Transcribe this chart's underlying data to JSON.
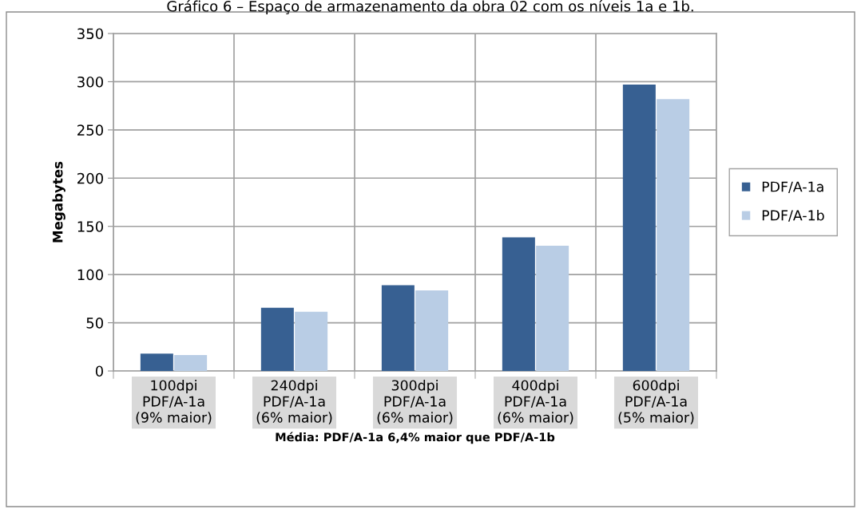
{
  "chart_data": {
    "type": "bar",
    "title": "Gráfico 6 – Espaço de armazenamento da obra 02 com os níveis 1a e 1b.",
    "xlabel": "Média: PDF/A-1a 6,4% maior que PDF/A-1b",
    "ylabel": "Megabytes",
    "categories": [
      "100dpi\nPDF/A-1a\n(9% maior)",
      "240dpi\nPDF/A-1a\n(6% maior)",
      "300dpi\nPDF/A-1a\n(6% maior)",
      "400dpi\nPDF/A-1a\n(6% maior)",
      "600dpi\nPDF/A-1a\n(5% maior)"
    ],
    "series": [
      {
        "name": "PDF/A-1a",
        "color": "#376092",
        "values": [
          18,
          65.5,
          89,
          138.5,
          297
        ]
      },
      {
        "name": "PDF/A-1b",
        "color": "#b9cde5",
        "values": [
          16.5,
          61.5,
          83.5,
          130,
          282
        ]
      }
    ],
    "ylim": [
      0,
      350
    ],
    "yticks": [
      0,
      50,
      100,
      150,
      200,
      250,
      300,
      350
    ],
    "grid": true,
    "legend": "right"
  }
}
